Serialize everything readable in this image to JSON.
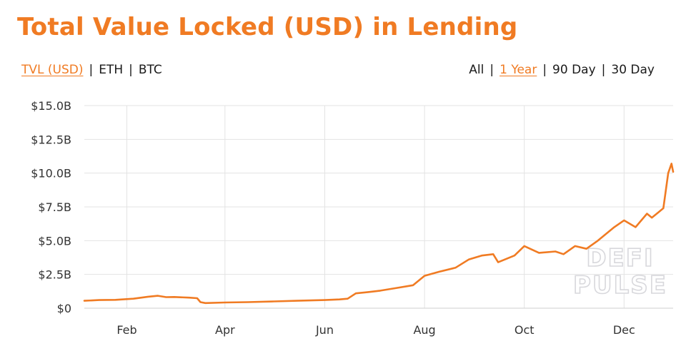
{
  "title": "Total Value Locked (USD) in Lending",
  "unit_toggle": [
    {
      "label": "TVL (USD)",
      "active": true
    },
    {
      "label": "ETH",
      "active": false
    },
    {
      "label": "BTC",
      "active": false
    }
  ],
  "range_toggle": [
    {
      "label": "All",
      "active": false
    },
    {
      "label": "1 Year",
      "active": true
    },
    {
      "label": "90 Day",
      "active": false
    },
    {
      "label": "30 Day",
      "active": false
    }
  ],
  "watermark": [
    "DEFI",
    "PULSE"
  ],
  "colors": {
    "accent": "#f07b23",
    "grid": "#e3e3e3"
  },
  "chart_data": {
    "type": "line",
    "title": "",
    "xlabel": "",
    "ylabel": "",
    "x_tick_labels": [
      "Feb",
      "Apr",
      "Jun",
      "Aug",
      "Oct",
      "Dec"
    ],
    "x_tick_dates": [
      "2020-02-01",
      "2020-04-01",
      "2020-06-01",
      "2020-08-01",
      "2020-10-01",
      "2020-12-01"
    ],
    "y_tick_labels": [
      "$0",
      "$2.5B",
      "$5.0B",
      "$7.5B",
      "$10.0B",
      "$12.5B",
      "$15.0B"
    ],
    "y_tick_values": [
      0,
      2.5,
      5,
      7.5,
      10,
      12.5,
      15
    ],
    "y_units": "billion USD",
    "ylim": [
      0,
      15
    ],
    "xlim": [
      "2020-01-06",
      "2020-12-31"
    ],
    "grid": true,
    "series": [
      {
        "color": "#f07b23",
        "points": [
          [
            "2020-01-06",
            0.55
          ],
          [
            "2020-01-15",
            0.6
          ],
          [
            "2020-01-25",
            0.62
          ],
          [
            "2020-02-05",
            0.7
          ],
          [
            "2020-02-14",
            0.85
          ],
          [
            "2020-02-20",
            0.92
          ],
          [
            "2020-02-25",
            0.82
          ],
          [
            "2020-03-01",
            0.83
          ],
          [
            "2020-03-10",
            0.78
          ],
          [
            "2020-03-15",
            0.74
          ],
          [
            "2020-03-17",
            0.45
          ],
          [
            "2020-03-20",
            0.38
          ],
          [
            "2020-04-01",
            0.42
          ],
          [
            "2020-04-15",
            0.45
          ],
          [
            "2020-05-01",
            0.5
          ],
          [
            "2020-05-15",
            0.55
          ],
          [
            "2020-06-01",
            0.6
          ],
          [
            "2020-06-10",
            0.65
          ],
          [
            "2020-06-15",
            0.7
          ],
          [
            "2020-06-20",
            1.1
          ],
          [
            "2020-06-28",
            1.2
          ],
          [
            "2020-07-05",
            1.3
          ],
          [
            "2020-07-15",
            1.5
          ],
          [
            "2020-07-25",
            1.7
          ],
          [
            "2020-08-01",
            2.4
          ],
          [
            "2020-08-10",
            2.7
          ],
          [
            "2020-08-20",
            3.0
          ],
          [
            "2020-08-28",
            3.6
          ],
          [
            "2020-09-05",
            3.9
          ],
          [
            "2020-09-12",
            4.0
          ],
          [
            "2020-09-15",
            3.4
          ],
          [
            "2020-09-25",
            3.9
          ],
          [
            "2020-10-01",
            4.6
          ],
          [
            "2020-10-10",
            4.1
          ],
          [
            "2020-10-20",
            4.2
          ],
          [
            "2020-10-25",
            4.0
          ],
          [
            "2020-11-01",
            4.6
          ],
          [
            "2020-11-08",
            4.4
          ],
          [
            "2020-11-15",
            5.0
          ],
          [
            "2020-11-25",
            6.0
          ],
          [
            "2020-12-01",
            6.5
          ],
          [
            "2020-12-08",
            6.0
          ],
          [
            "2020-12-15",
            7.0
          ],
          [
            "2020-12-18",
            6.7
          ],
          [
            "2020-12-22",
            7.1
          ],
          [
            "2020-12-25",
            7.4
          ],
          [
            "2020-12-28",
            10.0
          ],
          [
            "2020-12-30",
            10.7
          ],
          [
            "2020-12-31",
            10.1
          ]
        ]
      }
    ]
  }
}
